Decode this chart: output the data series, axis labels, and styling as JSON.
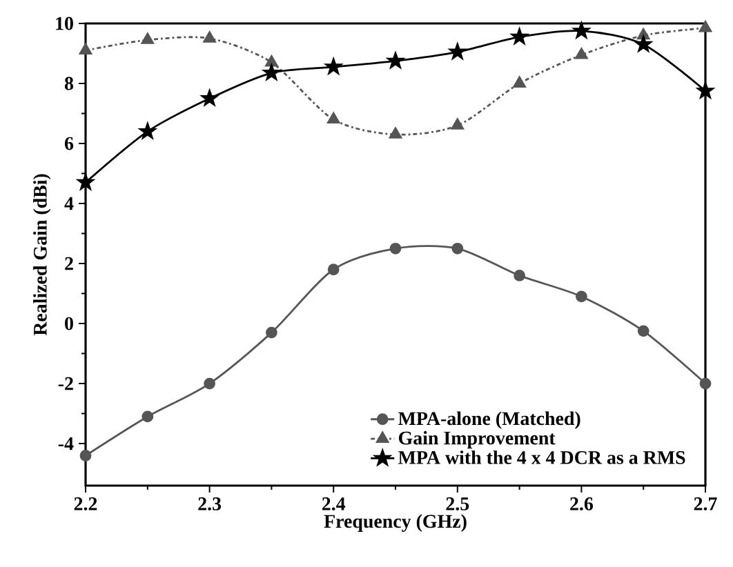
{
  "chart_data": {
    "type": "line",
    "xlabel": "Frequency (GHz)",
    "ylabel": "Realized Gain (dBi)",
    "x": [
      2.2,
      2.25,
      2.3,
      2.35,
      2.4,
      2.45,
      2.5,
      2.55,
      2.6,
      2.65,
      2.7
    ],
    "series": [
      {
        "name": "MPA-alone (Matched)",
        "color": "#555555",
        "marker": "circle",
        "line_style": "solid",
        "values": [
          -4.4,
          -3.1,
          -2.0,
          -0.3,
          1.8,
          2.5,
          2.5,
          1.6,
          0.9,
          -0.25,
          -2.0
        ]
      },
      {
        "name": "Gain Improvement",
        "color": "#555555",
        "marker": "triangle",
        "line_style": "dashed",
        "values": [
          9.1,
          9.45,
          9.5,
          8.7,
          6.8,
          6.3,
          6.6,
          8.0,
          8.95,
          9.6,
          9.85
        ]
      },
      {
        "name": "MPA with the 4 x 4 DCR as a RMS",
        "color": "#000000",
        "marker": "star",
        "line_style": "solid",
        "values": [
          4.7,
          6.4,
          7.5,
          8.35,
          8.55,
          8.75,
          9.05,
          9.55,
          9.75,
          9.3,
          7.75
        ]
      }
    ],
    "xlim": [
      2.2,
      2.7
    ],
    "ylim": [
      -5.4,
      10
    ],
    "xticks": [
      2.2,
      2.3,
      2.4,
      2.5,
      2.6,
      2.7
    ],
    "yticks": [
      -4,
      -2,
      0,
      2,
      4,
      6,
      8,
      10
    ],
    "grid": false,
    "legend": "bottom right"
  }
}
